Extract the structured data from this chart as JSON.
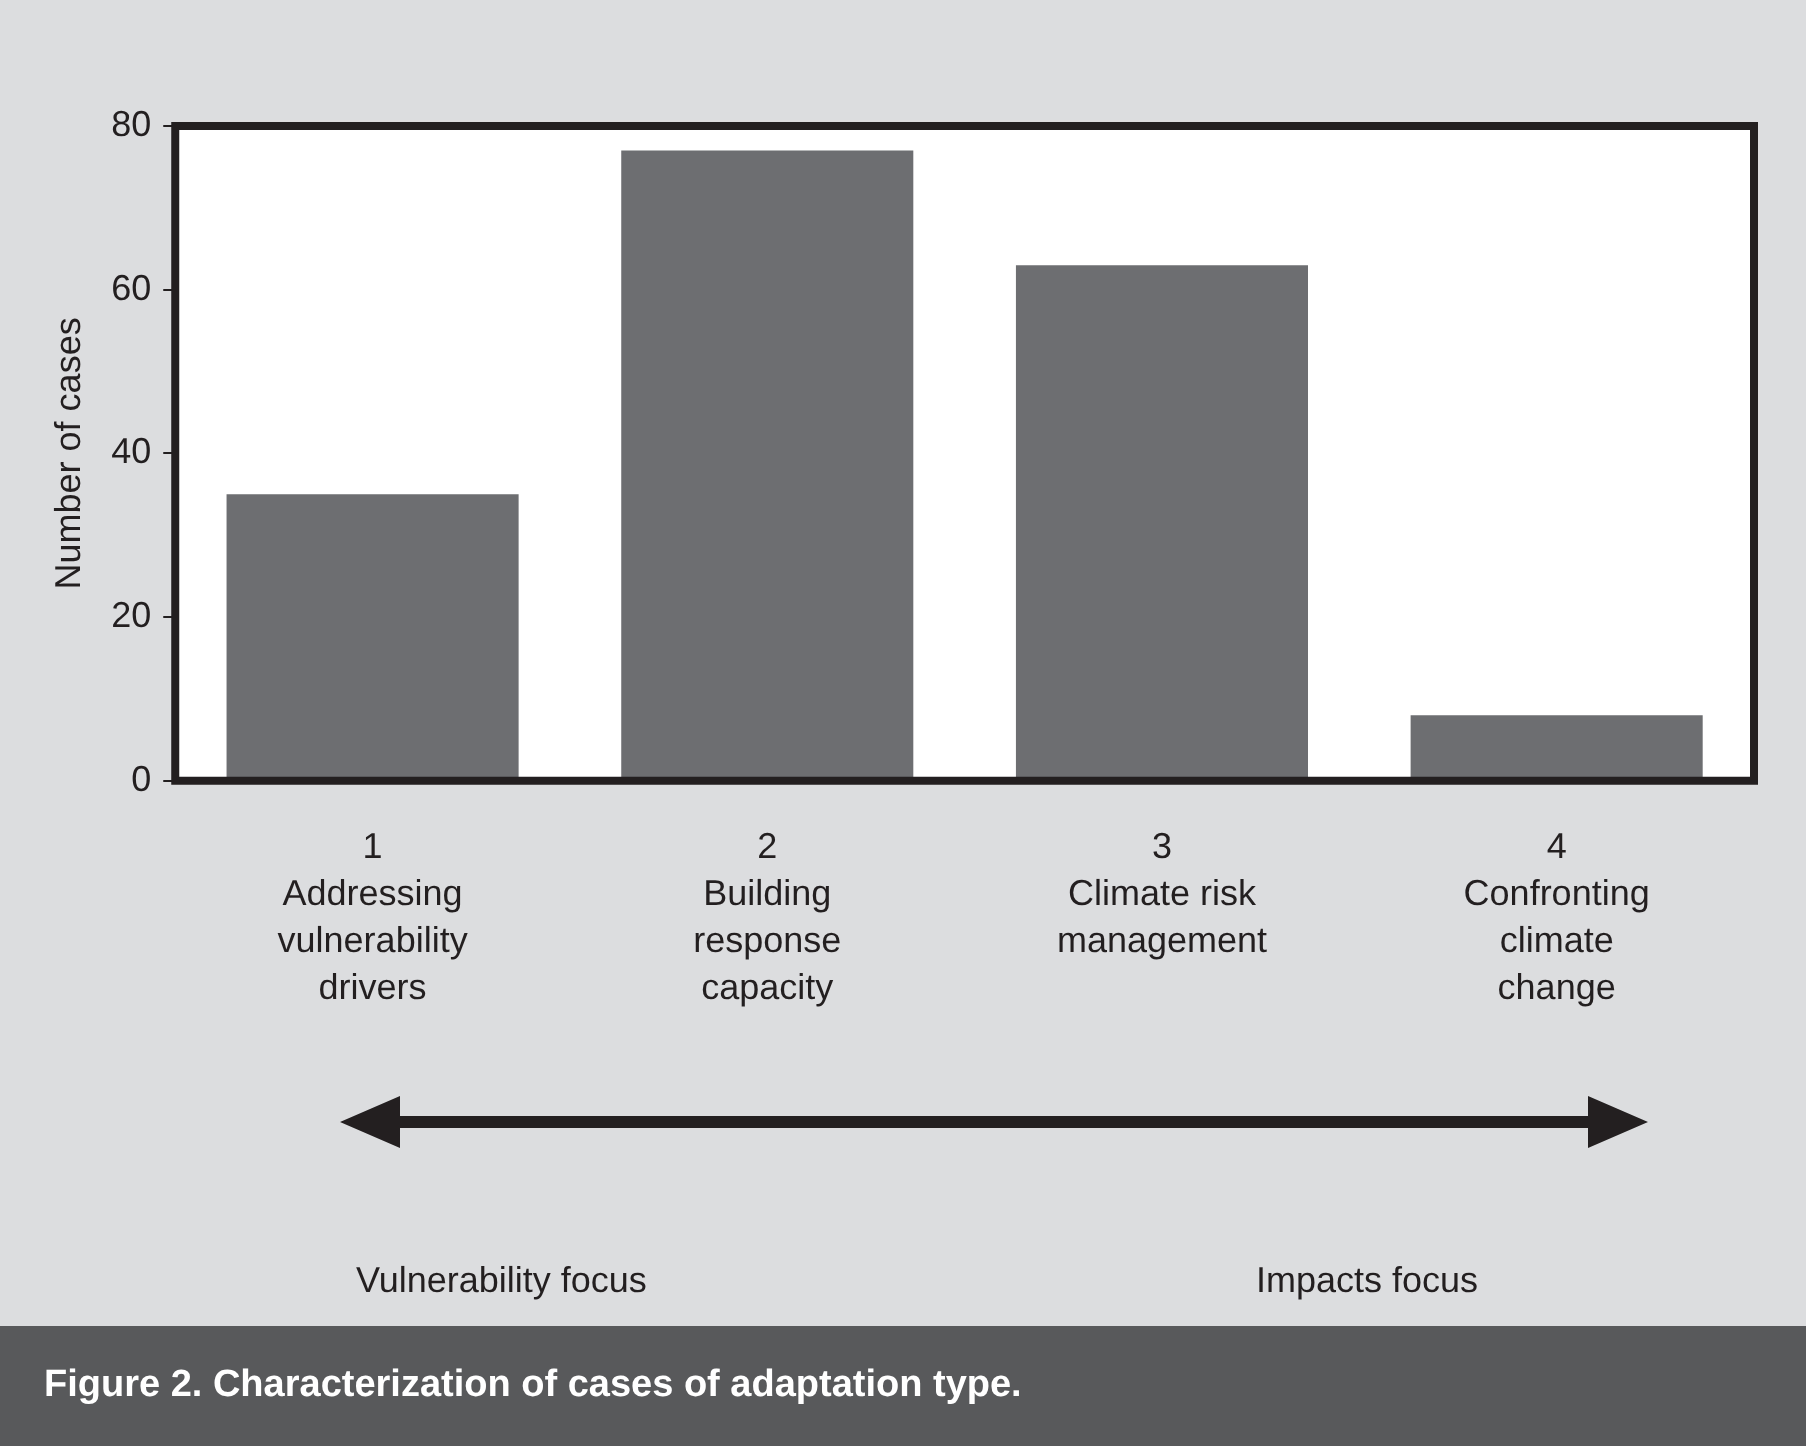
{
  "chart_data": {
    "type": "bar",
    "title": "Figure 2. Characterization of cases of adaptation type.",
    "ylabel": "Number of cases",
    "categories": [
      "1\nAddressing\nvulnerability\ndrivers",
      "2\nBuilding\nresponse\ncapacity",
      "3\nClimate risk\nmanagement",
      "4\nConfronting\nclimate\nchange"
    ],
    "values": [
      35,
      77,
      63,
      8
    ],
    "color": "#6d6e71",
    "ylim": [
      0,
      80
    ],
    "yticks": [
      0,
      20,
      40,
      60,
      80
    ],
    "annotations": [
      "Vulnerability focus",
      "Impacts focus"
    ]
  }
}
